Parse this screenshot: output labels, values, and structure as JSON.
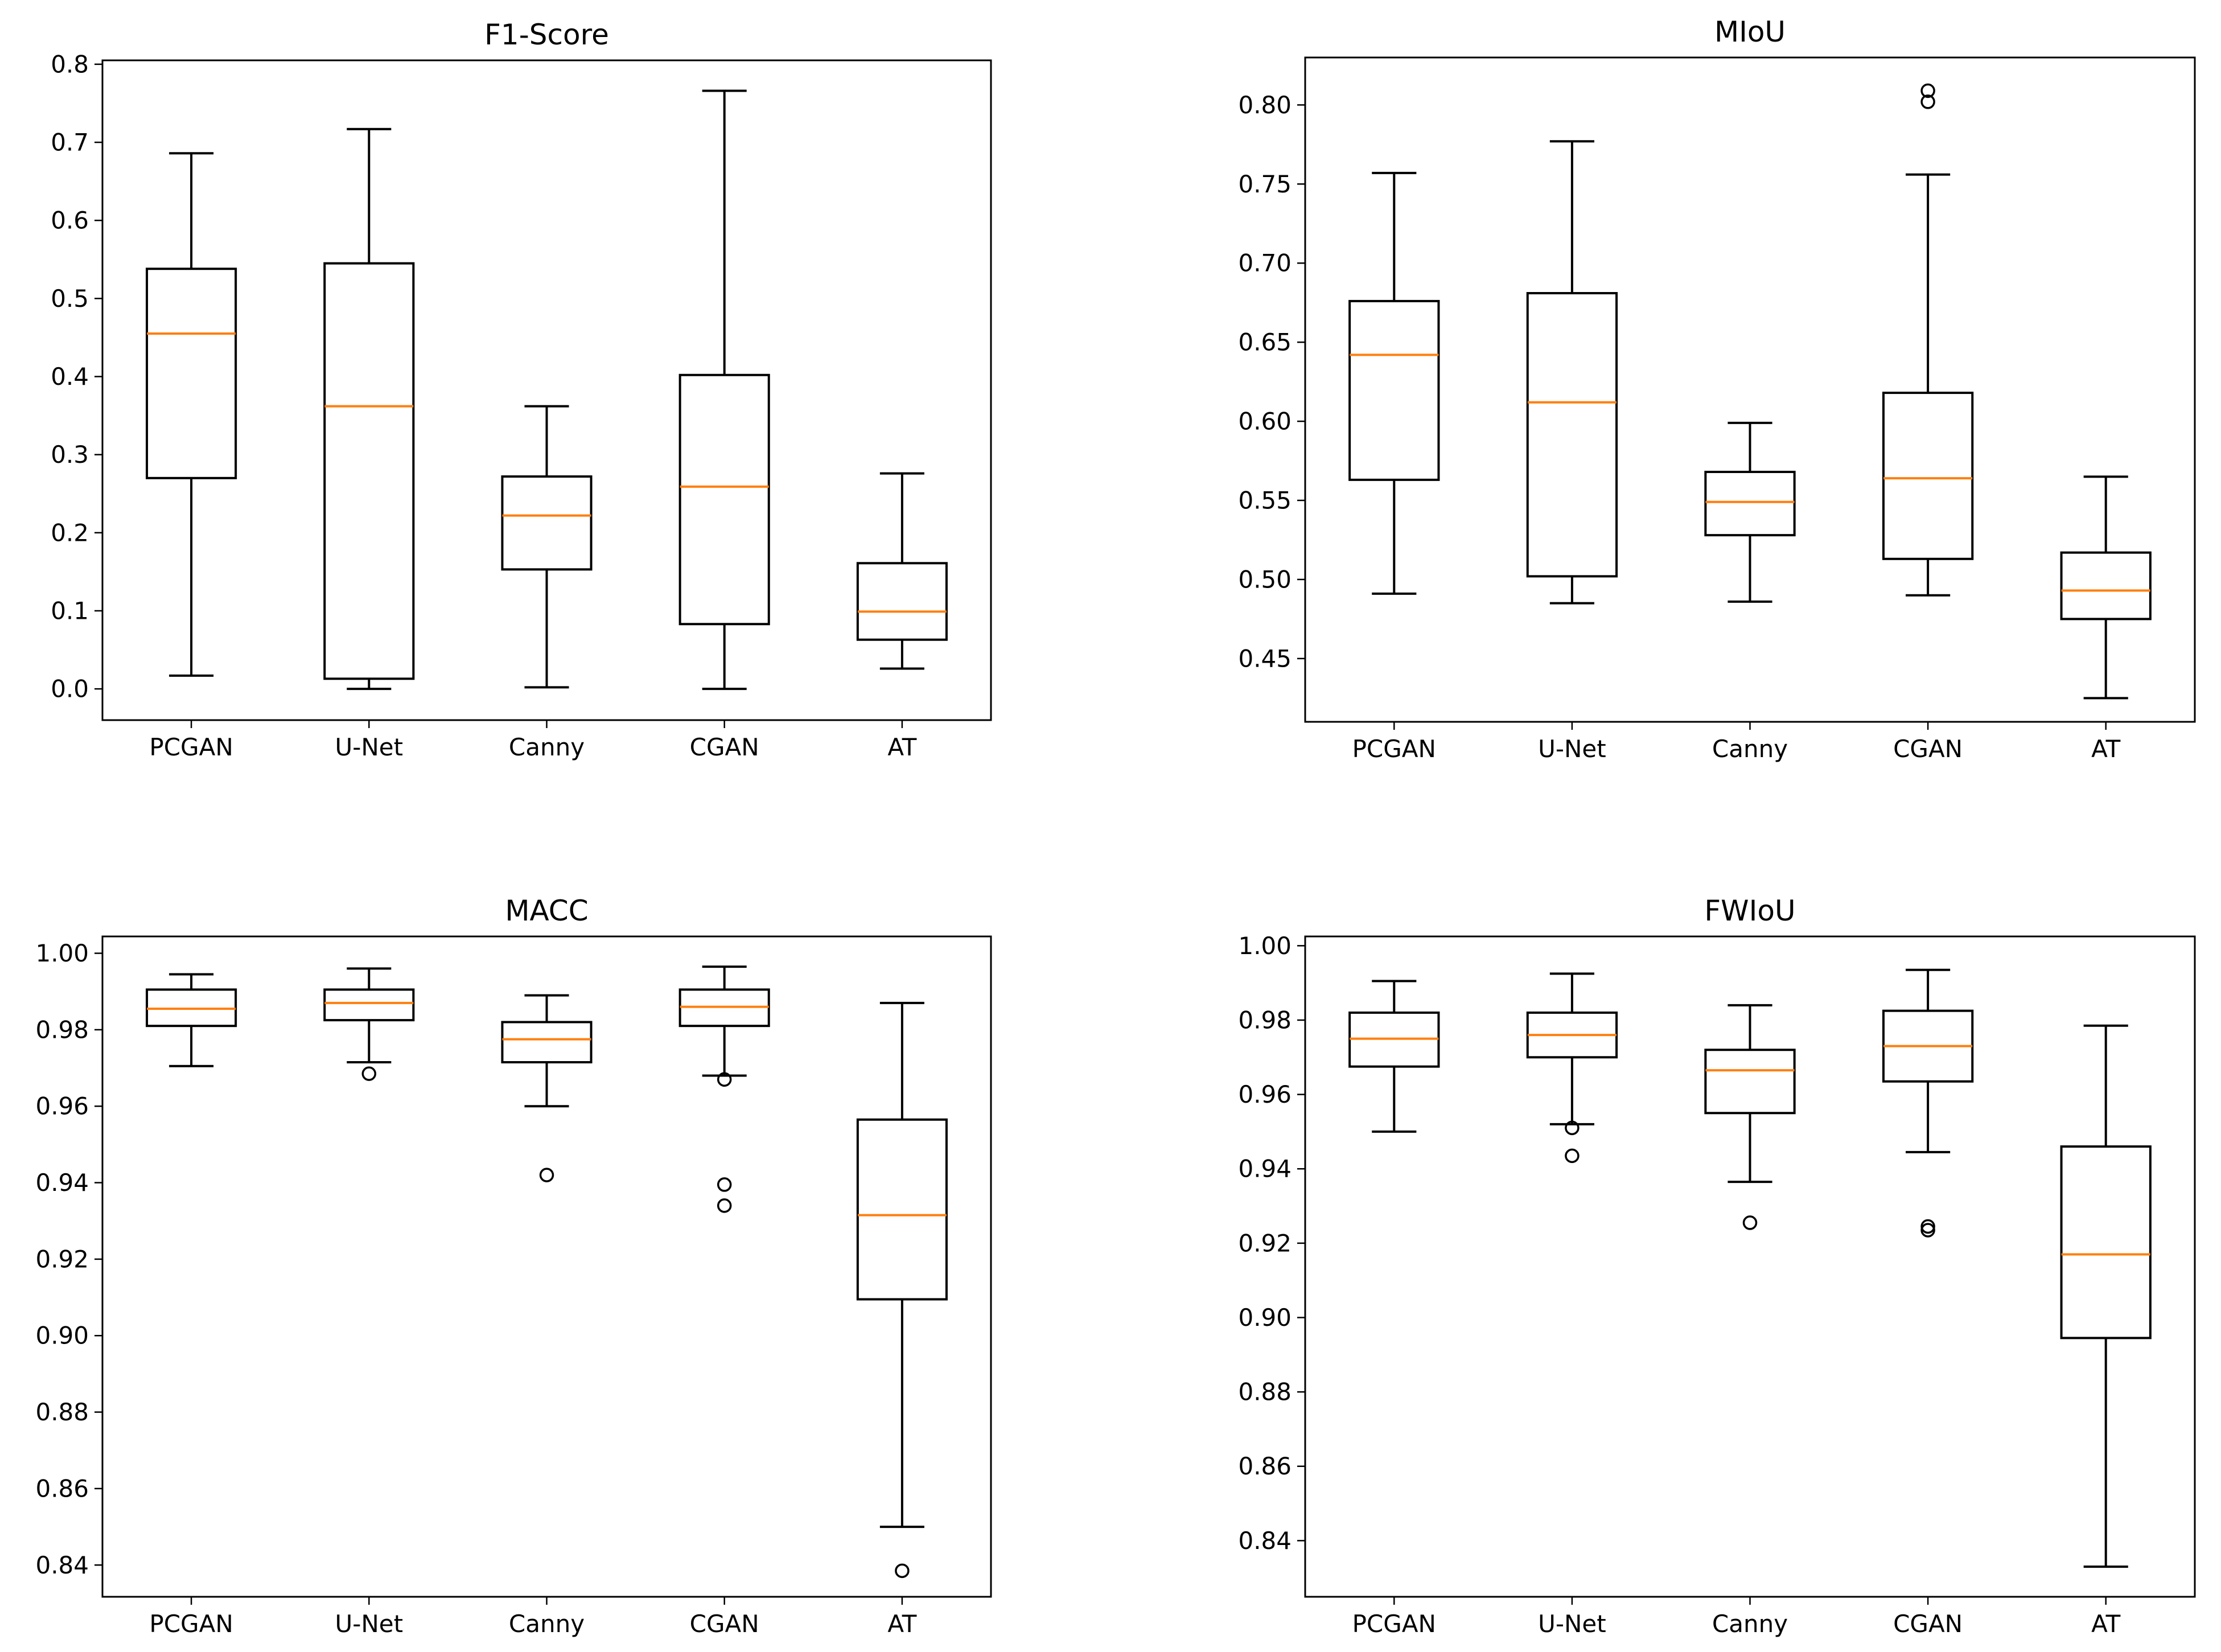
{
  "colors": {
    "box": "#000000",
    "median": "#ff7f0e",
    "background": "#ffffff"
  },
  "chart_data": [
    {
      "type": "box",
      "title": "F1-Score",
      "categories": [
        "PCGAN",
        "U-Net",
        "Canny",
        "CGAN",
        "AT"
      ],
      "ylim": [
        -0.04,
        0.805
      ],
      "yticks": [
        0.0,
        0.1,
        0.2,
        0.3,
        0.4,
        0.5,
        0.6,
        0.7,
        0.8
      ],
      "ytick_labels": [
        "0.0",
        "0.1",
        "0.2",
        "0.3",
        "0.4",
        "0.5",
        "0.6",
        "0.7",
        "0.8"
      ],
      "boxes": [
        {
          "label": "PCGAN",
          "whislo": 0.017,
          "q1": 0.27,
          "med": 0.455,
          "q3": 0.538,
          "whishi": 0.686,
          "fliers": []
        },
        {
          "label": "U-Net",
          "whislo": 0.0,
          "q1": 0.013,
          "med": 0.362,
          "q3": 0.545,
          "whishi": 0.717,
          "fliers": []
        },
        {
          "label": "Canny",
          "whislo": 0.002,
          "q1": 0.153,
          "med": 0.222,
          "q3": 0.272,
          "whishi": 0.362,
          "fliers": []
        },
        {
          "label": "CGAN",
          "whislo": 0.0,
          "q1": 0.083,
          "med": 0.259,
          "q3": 0.402,
          "whishi": 0.766,
          "fliers": []
        },
        {
          "label": "AT",
          "whislo": 0.026,
          "q1": 0.063,
          "med": 0.099,
          "q3": 0.161,
          "whishi": 0.276,
          "fliers": []
        }
      ]
    },
    {
      "type": "box",
      "title": "MIoU",
      "categories": [
        "PCGAN",
        "U-Net",
        "Canny",
        "CGAN",
        "AT"
      ],
      "ylim": [
        0.41,
        0.83
      ],
      "yticks": [
        0.45,
        0.5,
        0.55,
        0.6,
        0.65,
        0.7,
        0.75,
        0.8
      ],
      "ytick_labels": [
        "0.45",
        "0.50",
        "0.55",
        "0.60",
        "0.65",
        "0.70",
        "0.75",
        "0.80"
      ],
      "boxes": [
        {
          "label": "PCGAN",
          "whislo": 0.491,
          "q1": 0.563,
          "med": 0.642,
          "q3": 0.676,
          "whishi": 0.757,
          "fliers": []
        },
        {
          "label": "U-Net",
          "whislo": 0.485,
          "q1": 0.502,
          "med": 0.612,
          "q3": 0.681,
          "whishi": 0.777,
          "fliers": []
        },
        {
          "label": "Canny",
          "whislo": 0.486,
          "q1": 0.528,
          "med": 0.549,
          "q3": 0.568,
          "whishi": 0.599,
          "fliers": []
        },
        {
          "label": "CGAN",
          "whislo": 0.49,
          "q1": 0.513,
          "med": 0.564,
          "q3": 0.618,
          "whishi": 0.756,
          "fliers": [
            0.802,
            0.809
          ]
        },
        {
          "label": "AT",
          "whislo": 0.425,
          "q1": 0.475,
          "med": 0.493,
          "q3": 0.517,
          "whishi": 0.565,
          "fliers": []
        }
      ]
    },
    {
      "type": "box",
      "title": "MACC",
      "categories": [
        "PCGAN",
        "U-Net",
        "Canny",
        "CGAN",
        "AT"
      ],
      "ylim": [
        0.8317,
        1.0044
      ],
      "yticks": [
        0.84,
        0.86,
        0.88,
        0.9,
        0.92,
        0.94,
        0.96,
        0.98,
        1.0
      ],
      "ytick_labels": [
        "0.84",
        "0.86",
        "0.88",
        "0.90",
        "0.92",
        "0.94",
        "0.96",
        "0.98",
        "1.00"
      ],
      "boxes": [
        {
          "label": "PCGAN",
          "whislo": 0.9705,
          "q1": 0.981,
          "med": 0.9855,
          "q3": 0.9905,
          "whishi": 0.9945,
          "fliers": []
        },
        {
          "label": "U-Net",
          "whislo": 0.9715,
          "q1": 0.9825,
          "med": 0.987,
          "q3": 0.9905,
          "whishi": 0.996,
          "fliers": [
            0.9685
          ]
        },
        {
          "label": "Canny",
          "whislo": 0.96,
          "q1": 0.9715,
          "med": 0.9775,
          "q3": 0.982,
          "whishi": 0.989,
          "fliers": [
            0.942
          ]
        },
        {
          "label": "CGAN",
          "whislo": 0.968,
          "q1": 0.981,
          "med": 0.986,
          "q3": 0.9905,
          "whishi": 0.9965,
          "fliers": [
            0.967,
            0.9395,
            0.934
          ]
        },
        {
          "label": "AT",
          "whislo": 0.85,
          "q1": 0.9095,
          "med": 0.9315,
          "q3": 0.9565,
          "whishi": 0.987,
          "fliers": [
            0.8385
          ]
        }
      ]
    },
    {
      "type": "box",
      "title": "FWIoU",
      "categories": [
        "PCGAN",
        "U-Net",
        "Canny",
        "CGAN",
        "AT"
      ],
      "ylim": [
        0.8249,
        1.0025
      ],
      "yticks": [
        0.84,
        0.86,
        0.88,
        0.9,
        0.92,
        0.94,
        0.96,
        0.98,
        1.0
      ],
      "ytick_labels": [
        "0.84",
        "0.86",
        "0.88",
        "0.90",
        "0.92",
        "0.94",
        "0.96",
        "0.98",
        "1.00"
      ],
      "boxes": [
        {
          "label": "PCGAN",
          "whislo": 0.95,
          "q1": 0.9675,
          "med": 0.975,
          "q3": 0.982,
          "whishi": 0.9905,
          "fliers": []
        },
        {
          "label": "U-Net",
          "whislo": 0.952,
          "q1": 0.97,
          "med": 0.976,
          "q3": 0.982,
          "whishi": 0.9925,
          "fliers": [
            0.951,
            0.9435
          ]
        },
        {
          "label": "Canny",
          "whislo": 0.9365,
          "q1": 0.955,
          "med": 0.9665,
          "q3": 0.972,
          "whishi": 0.984,
          "fliers": [
            0.9255
          ]
        },
        {
          "label": "CGAN",
          "whislo": 0.9445,
          "q1": 0.9635,
          "med": 0.973,
          "q3": 0.9825,
          "whishi": 0.9935,
          "fliers": [
            0.9245,
            0.9235
          ]
        },
        {
          "label": "AT",
          "whislo": 0.833,
          "q1": 0.8945,
          "med": 0.917,
          "q3": 0.946,
          "whishi": 0.9785,
          "fliers": []
        }
      ]
    }
  ]
}
